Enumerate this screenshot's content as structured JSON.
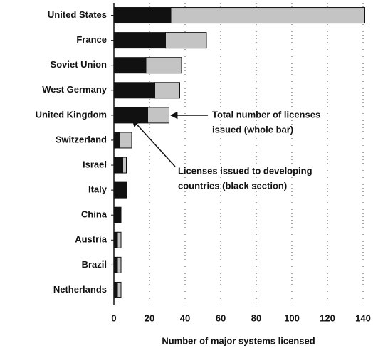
{
  "chart_data": {
    "type": "stacked_barh",
    "categories": [
      "United States",
      "France",
      "Soviet Union",
      "West Germany",
      "United Kingdom",
      "Switzerland",
      "Israel",
      "Italy",
      "China",
      "Austria",
      "Brazil",
      "Netherlands"
    ],
    "series": [
      {
        "color": "#111111",
        "values": [
          32,
          29,
          18,
          23,
          19,
          3,
          5,
          7,
          4,
          2,
          2,
          2
        ]
      },
      {
        "color": "#c4c4c4",
        "values": [
          109,
          23,
          20,
          14,
          12,
          7,
          2,
          0,
          0,
          2,
          2,
          2
        ]
      }
    ],
    "xlim": [
      0,
      140
    ],
    "xticks": [
      0,
      20,
      40,
      60,
      80,
      100,
      120,
      140
    ],
    "xlabel": "Number of major systems licensed",
    "grid": true,
    "annotations": [
      {
        "lines": [
          "Total number of licenses",
          "issued (whole bar)"
        ]
      },
      {
        "lines": [
          "Licenses issued to developing",
          "countries (black section)"
        ]
      }
    ]
  }
}
